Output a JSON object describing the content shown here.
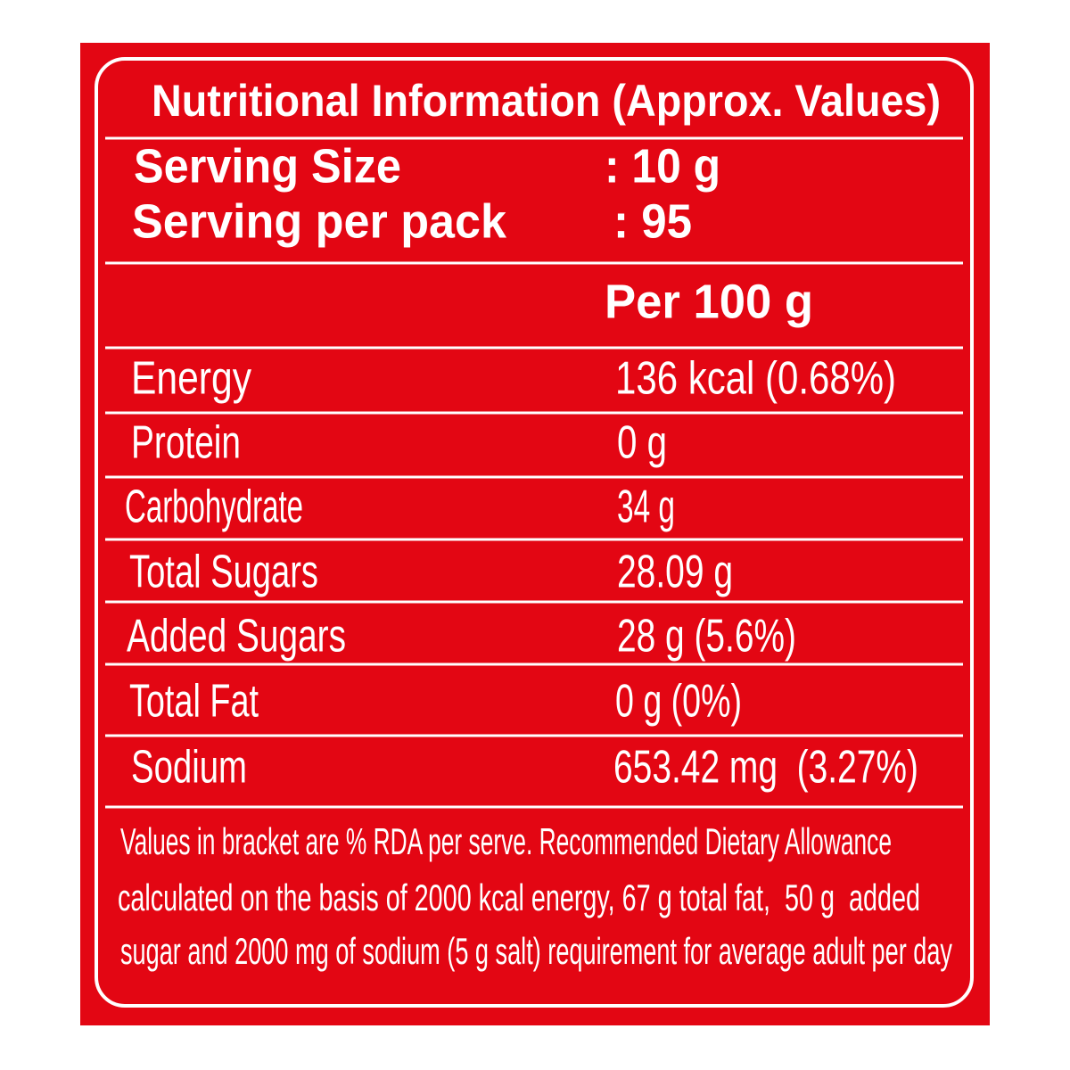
{
  "title": "Nutritional Information (Approx. Values)",
  "serving": [
    {
      "label": "Serving Size",
      "value": ": 10 g"
    },
    {
      "label": "Serving per pack",
      "value": ": 95"
    }
  ],
  "column_header": "Per 100 g",
  "nutrients": [
    {
      "label": "Energy",
      "value": "136 kcal (0.68%)"
    },
    {
      "label": "Protein",
      "value": "0 g"
    },
    {
      "label": "Carbohydrate",
      "value": "34 g"
    },
    {
      "label": "Total Sugars",
      "value": "28.09 g"
    },
    {
      "label": "Added Sugars",
      "value": "28 g (5.6%)"
    },
    {
      "label": "Total Fat",
      "value": "0 g (0%)"
    },
    {
      "label": "Sodium",
      "value": "653.42 mg  (3.27%)"
    }
  ],
  "footnote": [
    "Values in bracket are % RDA per serve. Recommended Dietary Allowance",
    "calculated on the basis of 2000 kcal energy, 67 g total fat,  50 g  added",
    "sugar and 2000 mg of sodium (5 g salt) requirement for average adult per day"
  ]
}
